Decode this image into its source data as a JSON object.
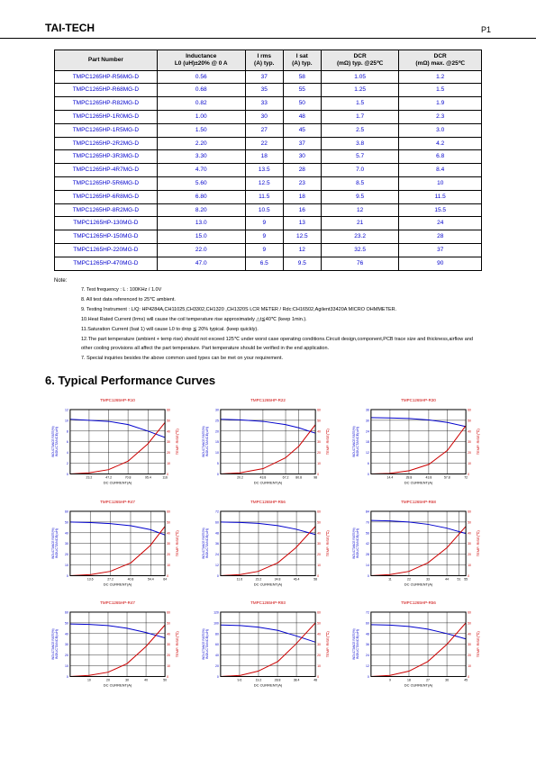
{
  "header": {
    "brand": "TAI-TECH",
    "page": "P1"
  },
  "table": {
    "columns": [
      "Part Number",
      "Inductance\nL0 (uH)±20% @ 0 A",
      "I rms\n(A) typ.",
      "I sat\n(A) typ.",
      "DCR\n(mΩ) typ. @25℃",
      "DCR\n(mΩ) max. @25℃"
    ],
    "rows": [
      [
        "TMPC1265HP-R56MG-D",
        "0.56",
        "37",
        "58",
        "1.05",
        "1.2"
      ],
      [
        "TMPC1265HP-R68MG-D",
        "0.68",
        "35",
        "55",
        "1.25",
        "1.5"
      ],
      [
        "TMPC1265HP-R82MG-D",
        "0.82",
        "33",
        "50",
        "1.5",
        "1.9"
      ],
      [
        "TMPC1265HP-1R0MG-D",
        "1.00",
        "30",
        "48",
        "1.7",
        "2.3"
      ],
      [
        "TMPC1265HP-1R5MG-D",
        "1.50",
        "27",
        "45",
        "2.5",
        "3.0"
      ],
      [
        "TMPC1265HP-2R2MG-D",
        "2.20",
        "22",
        "37",
        "3.8",
        "4.2"
      ],
      [
        "TMPC1265HP-3R3MG-D",
        "3.30",
        "18",
        "30",
        "5.7",
        "6.8"
      ],
      [
        "TMPC1265HP-4R7MG-D",
        "4.70",
        "13.5",
        "28",
        "7.0",
        "8.4"
      ],
      [
        "TMPC1265HP-5R6MG-D",
        "5.60",
        "12.5",
        "23",
        "8.5",
        "10"
      ],
      [
        "TMPC1265HP-6R8MG-D",
        "6.80",
        "11.5",
        "18",
        "9.5",
        "11.5"
      ],
      [
        "TMPC1265HP-8R2MG-D",
        "8.20",
        "10.5",
        "16",
        "12",
        "15.5"
      ],
      [
        "TMPC1265HP-130MG-D",
        "13.0",
        "9",
        "13",
        "21",
        "24"
      ],
      [
        "TMPC1265HP-150MG-D",
        "15.0",
        "9",
        "12.5",
        "23.2",
        "28"
      ],
      [
        "TMPC1265HP-220MG-D",
        "22.0",
        "9",
        "12",
        "32.5",
        "37"
      ],
      [
        "TMPC1265HP-470MG-D",
        "47.0",
        "6.5",
        "9.5",
        "76",
        "90"
      ]
    ]
  },
  "notes": {
    "label": "Note:",
    "items": [
      "7. Test frequency : L : 100KHz / 1.0V",
      "8. All test data referenced to 25℃ ambient.",
      "9. Testing Instrument : L/Q: HP4284A,CH11025,CH3302,CH1320 ,CH1320S LCR METER / Rdc:CH16502,Agilent33420A MICRO OHMMETER.",
      "10.Heat Rated Current (Irms) will cause the coil temperature rise approximately △t≦40℃ (keep 1min.).",
      "11.Saturation Current (Isat 1) will cause L0   to drop ≦ 20% typical. (keep quickly).",
      "12.The part temperature (ambient + temp rise) should not exceed 125℃ under worst case operating conditions.Circuit design,component,PCB trace size and thickness,airflow and other cooling provisions all affect the part temperature. Part temperature should be verified in the end application.",
      "7. Special inquiries besides the above common used types can be met on your requirement."
    ]
  },
  "section_title": "6. Typical Performance Curves",
  "chart_common": {
    "plot_bg": "#ffffff",
    "grid_color": "#000000",
    "border_color": "#000000",
    "ind_color": "#0000cc",
    "temp_color": "#cc0000",
    "y1_label": "INDUCTANCE(uH)",
    "y1_label2": "INDUCTANCE\nRATE(%)",
    "y2_label": "TEMP. RISE(℃)",
    "x_label": "DC CURRENT(A)"
  },
  "charts": [
    {
      "title": "TMPC1265HP-R10",
      "xlim": [
        0,
        116
      ],
      "xticks": [
        23.2,
        47.2,
        70.8,
        95.4,
        116
      ],
      "y1lim": [
        0,
        12
      ],
      "y1ticks": [
        0,
        2,
        4,
        6,
        8,
        10,
        12
      ],
      "y2lim": [
        0,
        60
      ],
      "y2ticks": [
        0,
        10,
        20,
        30,
        40,
        50,
        60
      ],
      "ind": [
        [
          0,
          10.2
        ],
        [
          23,
          10.0
        ],
        [
          47,
          9.8
        ],
        [
          71,
          9.2
        ],
        [
          95,
          8.0
        ],
        [
          116,
          6.8
        ]
      ],
      "temp": [
        [
          0,
          0
        ],
        [
          23,
          1
        ],
        [
          47,
          4
        ],
        [
          71,
          12
        ],
        [
          95,
          28
        ],
        [
          116,
          48
        ]
      ]
    },
    {
      "title": "TMPC1265HP-R22",
      "xlim": [
        0,
        98
      ],
      "xticks": [
        20.2,
        43.8,
        67.2,
        80.8,
        98
      ],
      "y1lim": [
        0,
        30
      ],
      "y1ticks": [
        0,
        5,
        10,
        15,
        20,
        25,
        30
      ],
      "y2lim": [
        0,
        60
      ],
      "y2ticks": [
        0,
        10,
        20,
        30,
        40,
        50,
        60
      ],
      "ind": [
        [
          0,
          25.5
        ],
        [
          20,
          25.2
        ],
        [
          44,
          24.5
        ],
        [
          67,
          23.0
        ],
        [
          81,
          21.5
        ],
        [
          98,
          19.0
        ]
      ],
      "temp": [
        [
          0,
          0
        ],
        [
          20,
          1
        ],
        [
          44,
          5
        ],
        [
          67,
          15
        ],
        [
          81,
          26
        ],
        [
          98,
          46
        ]
      ]
    },
    {
      "title": "TMPC1265HP-R30",
      "xlim": [
        0,
        72
      ],
      "xticks": [
        14.4,
        28.8,
        43.8,
        57.8,
        72
      ],
      "y1lim": [
        0,
        36
      ],
      "y1ticks": [
        0,
        6,
        12,
        18,
        24,
        30,
        36
      ],
      "y2lim": [
        0,
        60
      ],
      "y2ticks": [
        0,
        10,
        20,
        30,
        40,
        50,
        60
      ],
      "ind": [
        [
          0,
          31.5
        ],
        [
          14,
          31.3
        ],
        [
          29,
          31.0
        ],
        [
          44,
          30.2
        ],
        [
          58,
          28.8
        ],
        [
          72,
          26.5
        ]
      ],
      "temp": [
        [
          0,
          0
        ],
        [
          14,
          0.5
        ],
        [
          29,
          3
        ],
        [
          44,
          9
        ],
        [
          58,
          22
        ],
        [
          72,
          45
        ]
      ]
    },
    {
      "title": "TMPC1265HP-R47",
      "xlim": [
        0,
        64
      ],
      "xticks": [
        13.6,
        27.2,
        40.8,
        54.4,
        64
      ],
      "y1lim": [
        0,
        60
      ],
      "y1ticks": [
        0,
        10,
        20,
        30,
        40,
        50,
        60
      ],
      "y2lim": [
        0,
        60
      ],
      "y2ticks": [
        0,
        10,
        20,
        30,
        40,
        50,
        60
      ],
      "ind": [
        [
          0,
          50
        ],
        [
          14,
          49.5
        ],
        [
          27,
          48.5
        ],
        [
          41,
          46.5
        ],
        [
          54,
          43
        ],
        [
          64,
          38
        ]
      ],
      "temp": [
        [
          0,
          0
        ],
        [
          14,
          1
        ],
        [
          27,
          4
        ],
        [
          41,
          12
        ],
        [
          54,
          28
        ],
        [
          64,
          46
        ]
      ]
    },
    {
      "title": "TMPC1265HP-R56",
      "xlim": [
        0,
        58
      ],
      "xticks": [
        11.6,
        23.2,
        34.8,
        46.4,
        58
      ],
      "y1lim": [
        0,
        72
      ],
      "y1ticks": [
        0,
        12,
        24,
        36,
        48,
        60,
        72
      ],
      "y2lim": [
        0,
        60
      ],
      "y2ticks": [
        0,
        10,
        20,
        30,
        40,
        50,
        60
      ],
      "ind": [
        [
          0,
          60
        ],
        [
          12,
          59.5
        ],
        [
          23,
          58.5
        ],
        [
          35,
          56
        ],
        [
          46,
          52
        ],
        [
          58,
          46
        ]
      ],
      "temp": [
        [
          0,
          0
        ],
        [
          12,
          1
        ],
        [
          23,
          4
        ],
        [
          35,
          12
        ],
        [
          46,
          26
        ],
        [
          58,
          46
        ]
      ]
    },
    {
      "title": "TMPC1265HP-R68",
      "xlim": [
        0,
        55
      ],
      "xticks": [
        11.0,
        22.0,
        33.0,
        44.0,
        51.0,
        55
      ],
      "y1lim": [
        0,
        84
      ],
      "y1ticks": [
        0,
        14,
        28,
        42,
        56,
        70,
        84
      ],
      "y2lim": [
        0,
        60
      ],
      "y2ticks": [
        0,
        10,
        20,
        30,
        40,
        50,
        60
      ],
      "ind": [
        [
          0,
          72
        ],
        [
          11,
          71.5
        ],
        [
          22,
          70
        ],
        [
          33,
          67
        ],
        [
          44,
          62
        ],
        [
          55,
          55
        ]
      ],
      "temp": [
        [
          0,
          0
        ],
        [
          11,
          1
        ],
        [
          22,
          4
        ],
        [
          33,
          12
        ],
        [
          44,
          26
        ],
        [
          55,
          46
        ]
      ]
    },
    {
      "title": "TMPC1265HP-R47",
      "xlim": [
        0,
        50
      ],
      "xticks": [
        10.0,
        20.0,
        30.0,
        40.0,
        50.0
      ],
      "y1lim": [
        0,
        60
      ],
      "y1ticks": [
        0,
        10,
        20,
        30,
        40,
        50,
        60
      ],
      "y2lim": [
        0,
        60
      ],
      "y2ticks": [
        0,
        10,
        20,
        30,
        40,
        50,
        60
      ],
      "ind": [
        [
          0,
          49
        ],
        [
          10,
          48.5
        ],
        [
          20,
          47.5
        ],
        [
          30,
          45
        ],
        [
          40,
          41
        ],
        [
          50,
          36
        ]
      ],
      "temp": [
        [
          0,
          0
        ],
        [
          10,
          1
        ],
        [
          20,
          4
        ],
        [
          30,
          12
        ],
        [
          40,
          28
        ],
        [
          50,
          48
        ]
      ]
    },
    {
      "title": "TMPC1265HP-R93",
      "xlim": [
        0,
        48
      ],
      "xticks": [
        9.6,
        19.2,
        28.8,
        38.4,
        48
      ],
      "y1lim": [
        0,
        120
      ],
      "y1ticks": [
        0,
        20,
        40,
        60,
        80,
        100,
        120
      ],
      "y2lim": [
        0,
        60
      ],
      "y2ticks": [
        0,
        10,
        20,
        30,
        40,
        50,
        60
      ],
      "ind": [
        [
          0,
          96
        ],
        [
          10,
          95
        ],
        [
          19,
          92
        ],
        [
          29,
          86
        ],
        [
          38,
          76
        ],
        [
          48,
          64
        ]
      ],
      "temp": [
        [
          0,
          0
        ],
        [
          10,
          1
        ],
        [
          19,
          5
        ],
        [
          29,
          14
        ],
        [
          38,
          30
        ],
        [
          48,
          50
        ]
      ]
    },
    {
      "title": "TMPC1265HP-R56",
      "xlim": [
        0,
        45
      ],
      "xticks": [
        9,
        18,
        27,
        36,
        45
      ],
      "y1lim": [
        0,
        72
      ],
      "y1ticks": [
        0,
        12,
        24,
        36,
        48,
        60,
        72
      ],
      "y2lim": [
        0,
        60
      ],
      "y2ticks": [
        0,
        10,
        20,
        30,
        40,
        50,
        60
      ],
      "ind": [
        [
          0,
          58
        ],
        [
          9,
          57.5
        ],
        [
          18,
          56
        ],
        [
          27,
          53
        ],
        [
          36,
          48
        ],
        [
          45,
          42
        ]
      ],
      "temp": [
        [
          0,
          0
        ],
        [
          9,
          1
        ],
        [
          18,
          5
        ],
        [
          27,
          14
        ],
        [
          36,
          30
        ],
        [
          45,
          50
        ]
      ]
    }
  ]
}
